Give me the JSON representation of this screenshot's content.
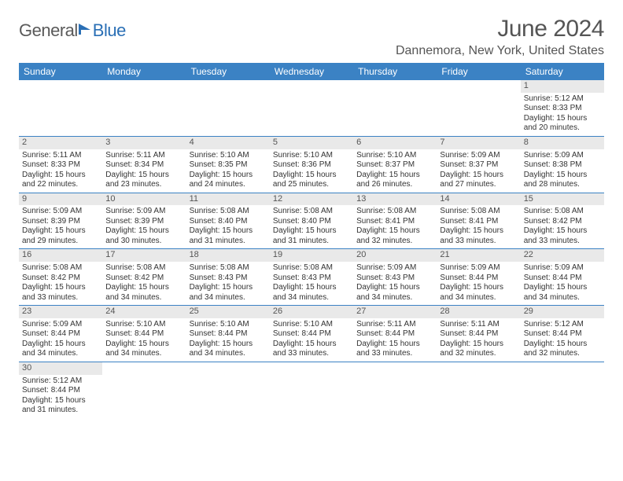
{
  "logo": {
    "part1": "General",
    "part2": "Blue"
  },
  "title": "June 2024",
  "location": "Dannemora, New York, United States",
  "colors": {
    "header_bg": "#3b82c4",
    "header_text": "#ffffff",
    "daynum_bg": "#e9e9e9",
    "border": "#3b82c4",
    "title_color": "#555555",
    "logo_gray": "#5a5a5a",
    "logo_blue": "#2a6fb5",
    "cell_text": "#333333"
  },
  "day_headers": [
    "Sunday",
    "Monday",
    "Tuesday",
    "Wednesday",
    "Thursday",
    "Friday",
    "Saturday"
  ],
  "labels": {
    "sunrise": "Sunrise:",
    "sunset": "Sunset:",
    "daylight": "Daylight:"
  },
  "weeks": [
    [
      null,
      null,
      null,
      null,
      null,
      null,
      {
        "n": "1",
        "sr": "5:12 AM",
        "ss": "8:33 PM",
        "dl": "15 hours and 20 minutes."
      }
    ],
    [
      {
        "n": "2",
        "sr": "5:11 AM",
        "ss": "8:33 PM",
        "dl": "15 hours and 22 minutes."
      },
      {
        "n": "3",
        "sr": "5:11 AM",
        "ss": "8:34 PM",
        "dl": "15 hours and 23 minutes."
      },
      {
        "n": "4",
        "sr": "5:10 AM",
        "ss": "8:35 PM",
        "dl": "15 hours and 24 minutes."
      },
      {
        "n": "5",
        "sr": "5:10 AM",
        "ss": "8:36 PM",
        "dl": "15 hours and 25 minutes."
      },
      {
        "n": "6",
        "sr": "5:10 AM",
        "ss": "8:37 PM",
        "dl": "15 hours and 26 minutes."
      },
      {
        "n": "7",
        "sr": "5:09 AM",
        "ss": "8:37 PM",
        "dl": "15 hours and 27 minutes."
      },
      {
        "n": "8",
        "sr": "5:09 AM",
        "ss": "8:38 PM",
        "dl": "15 hours and 28 minutes."
      }
    ],
    [
      {
        "n": "9",
        "sr": "5:09 AM",
        "ss": "8:39 PM",
        "dl": "15 hours and 29 minutes."
      },
      {
        "n": "10",
        "sr": "5:09 AM",
        "ss": "8:39 PM",
        "dl": "15 hours and 30 minutes."
      },
      {
        "n": "11",
        "sr": "5:08 AM",
        "ss": "8:40 PM",
        "dl": "15 hours and 31 minutes."
      },
      {
        "n": "12",
        "sr": "5:08 AM",
        "ss": "8:40 PM",
        "dl": "15 hours and 31 minutes."
      },
      {
        "n": "13",
        "sr": "5:08 AM",
        "ss": "8:41 PM",
        "dl": "15 hours and 32 minutes."
      },
      {
        "n": "14",
        "sr": "5:08 AM",
        "ss": "8:41 PM",
        "dl": "15 hours and 33 minutes."
      },
      {
        "n": "15",
        "sr": "5:08 AM",
        "ss": "8:42 PM",
        "dl": "15 hours and 33 minutes."
      }
    ],
    [
      {
        "n": "16",
        "sr": "5:08 AM",
        "ss": "8:42 PM",
        "dl": "15 hours and 33 minutes."
      },
      {
        "n": "17",
        "sr": "5:08 AM",
        "ss": "8:42 PM",
        "dl": "15 hours and 34 minutes."
      },
      {
        "n": "18",
        "sr": "5:08 AM",
        "ss": "8:43 PM",
        "dl": "15 hours and 34 minutes."
      },
      {
        "n": "19",
        "sr": "5:08 AM",
        "ss": "8:43 PM",
        "dl": "15 hours and 34 minutes."
      },
      {
        "n": "20",
        "sr": "5:09 AM",
        "ss": "8:43 PM",
        "dl": "15 hours and 34 minutes."
      },
      {
        "n": "21",
        "sr": "5:09 AM",
        "ss": "8:44 PM",
        "dl": "15 hours and 34 minutes."
      },
      {
        "n": "22",
        "sr": "5:09 AM",
        "ss": "8:44 PM",
        "dl": "15 hours and 34 minutes."
      }
    ],
    [
      {
        "n": "23",
        "sr": "5:09 AM",
        "ss": "8:44 PM",
        "dl": "15 hours and 34 minutes."
      },
      {
        "n": "24",
        "sr": "5:10 AM",
        "ss": "8:44 PM",
        "dl": "15 hours and 34 minutes."
      },
      {
        "n": "25",
        "sr": "5:10 AM",
        "ss": "8:44 PM",
        "dl": "15 hours and 34 minutes."
      },
      {
        "n": "26",
        "sr": "5:10 AM",
        "ss": "8:44 PM",
        "dl": "15 hours and 33 minutes."
      },
      {
        "n": "27",
        "sr": "5:11 AM",
        "ss": "8:44 PM",
        "dl": "15 hours and 33 minutes."
      },
      {
        "n": "28",
        "sr": "5:11 AM",
        "ss": "8:44 PM",
        "dl": "15 hours and 32 minutes."
      },
      {
        "n": "29",
        "sr": "5:12 AM",
        "ss": "8:44 PM",
        "dl": "15 hours and 32 minutes."
      }
    ],
    [
      {
        "n": "30",
        "sr": "5:12 AM",
        "ss": "8:44 PM",
        "dl": "15 hours and 31 minutes."
      },
      null,
      null,
      null,
      null,
      null,
      null
    ]
  ]
}
